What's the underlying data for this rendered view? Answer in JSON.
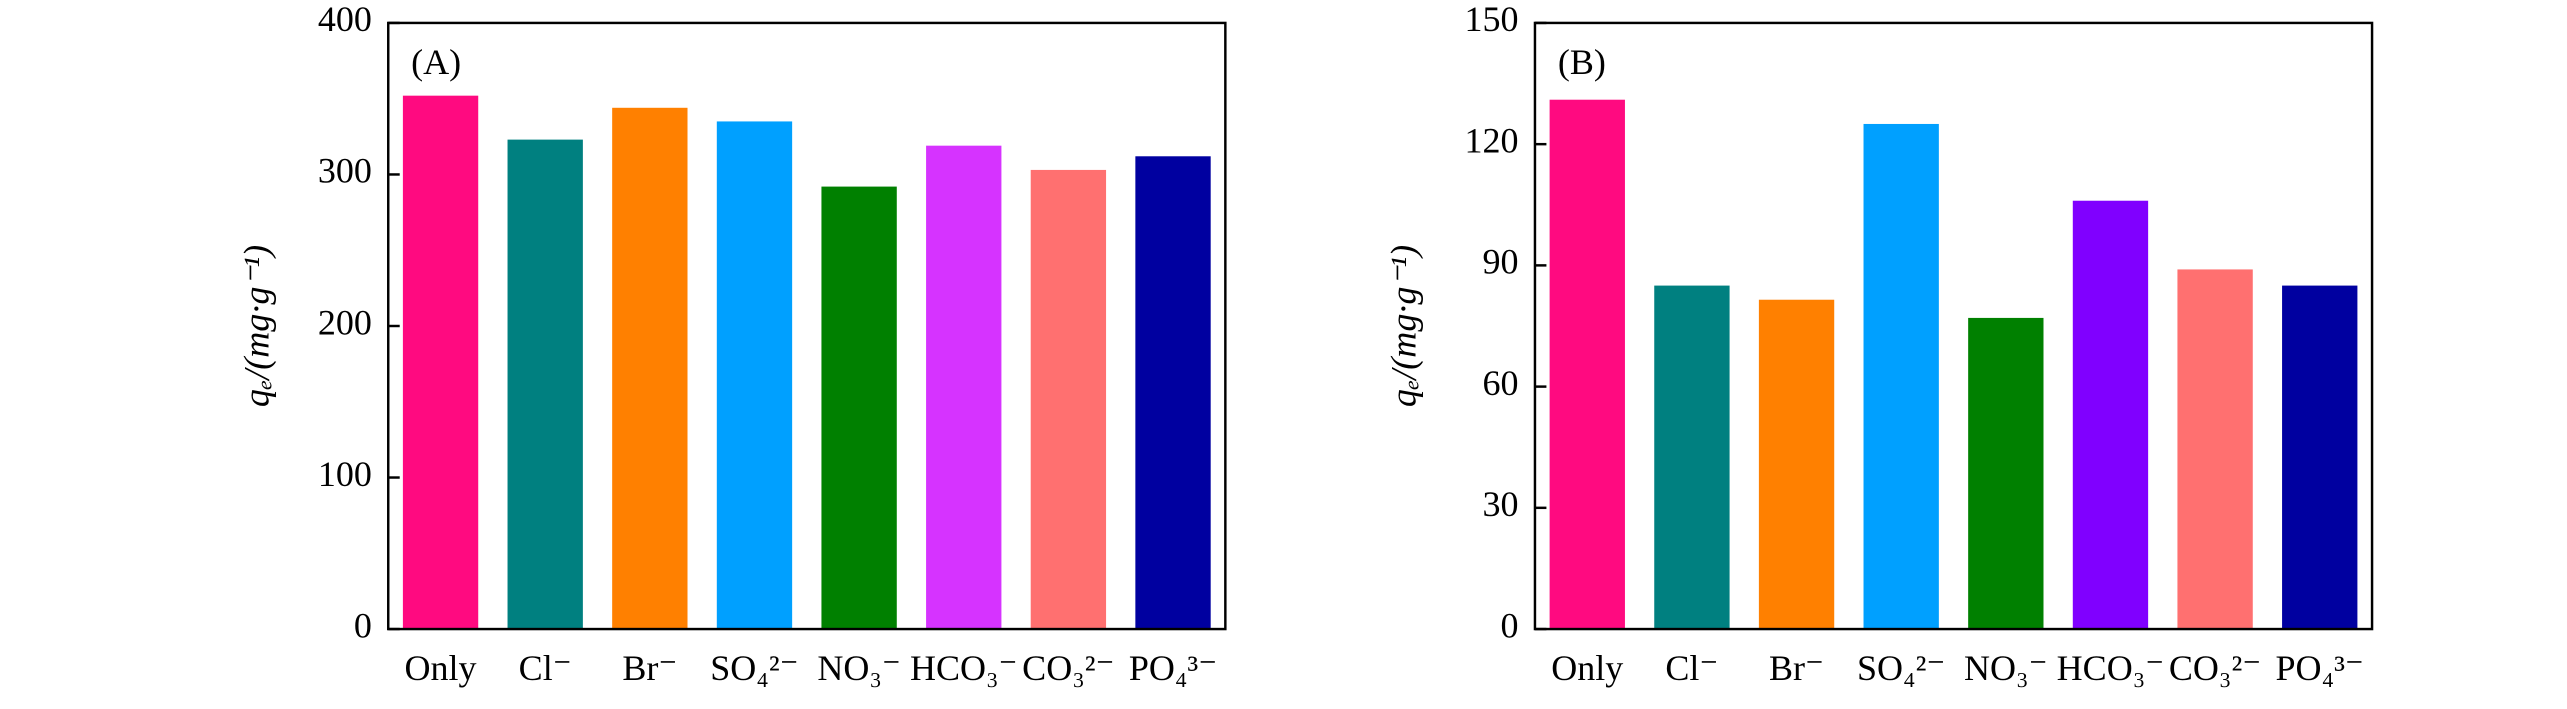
{
  "chart_data": [
    {
      "type": "bar",
      "panel_label": "(A)",
      "y_label": "qₑ/(mg·g⁻¹)",
      "categories": [
        "Only",
        "Cl⁻",
        "Br⁻",
        "SO₄²⁻",
        "NO₃⁻",
        "HCO₃⁻",
        "CO₃²⁻",
        "PO₄³⁻"
      ],
      "values": [
        352,
        323,
        344,
        335,
        292,
        319,
        303,
        312
      ],
      "colors": [
        "#ff0a80",
        "#008080",
        "#ff8000",
        "#00a0ff",
        "#008000",
        "#d633ff",
        "#ff7070",
        "#0000a0"
      ],
      "ylim": [
        0,
        400
      ],
      "yticks": [
        0,
        100,
        200,
        300,
        400
      ]
    },
    {
      "type": "bar",
      "panel_label": "(B)",
      "y_label": "qₑ/(mg·g⁻¹)",
      "categories": [
        "Only",
        "Cl⁻",
        "Br⁻",
        "SO₄²⁻",
        "NO₃⁻",
        "HCO₃⁻",
        "CO₃²⁻",
        "PO₄³⁻"
      ],
      "values": [
        131,
        85,
        81.5,
        125,
        77,
        106,
        89,
        85
      ],
      "colors": [
        "#ff0a80",
        "#008080",
        "#ff8000",
        "#00a0ff",
        "#008000",
        "#8000ff",
        "#ff7070",
        "#0000a0"
      ],
      "ylim": [
        0,
        150
      ],
      "yticks": [
        0,
        30,
        60,
        90,
        120,
        150
      ]
    }
  ]
}
